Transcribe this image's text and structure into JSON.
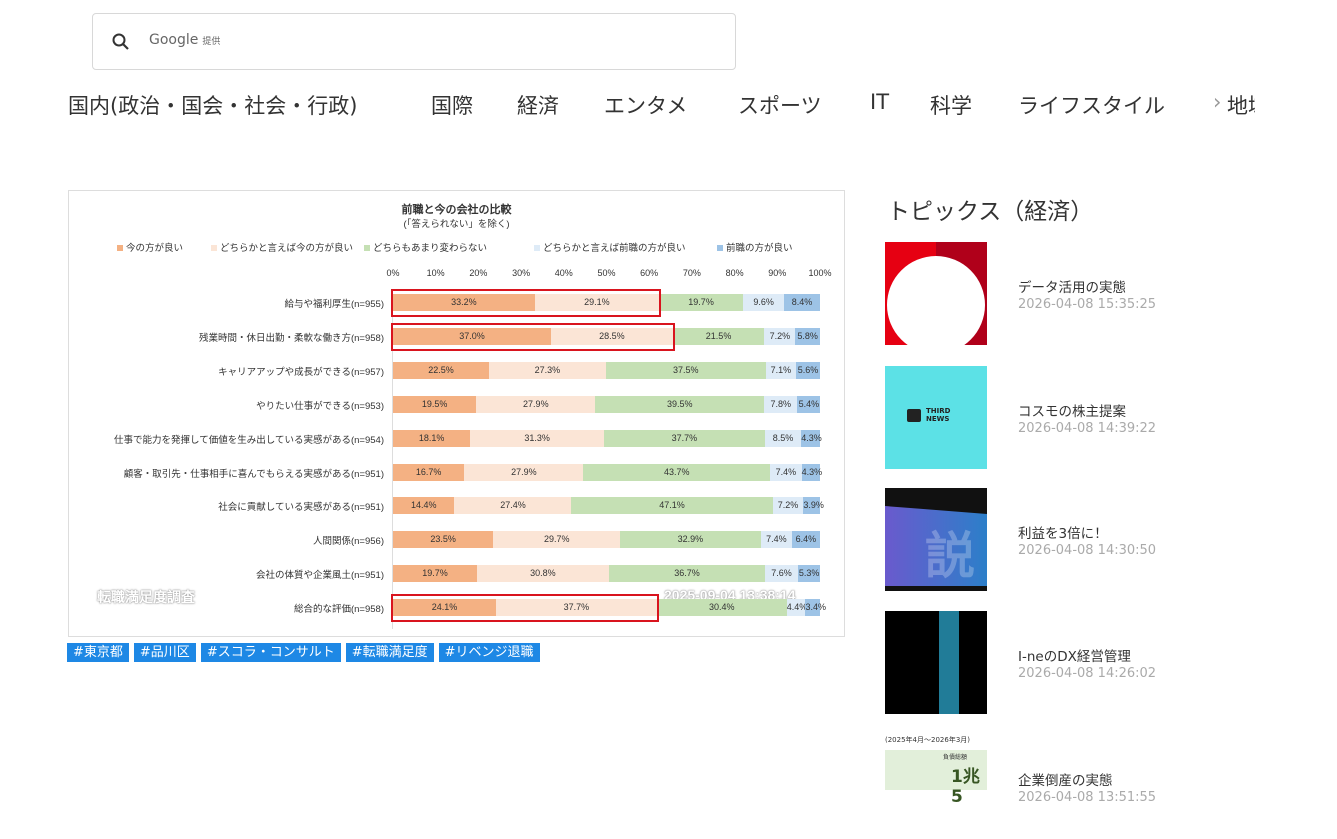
{
  "search": {
    "placeholder": "Google",
    "provider": "提供"
  },
  "nav": {
    "items": [
      "国内(政治・国会・社会・行政)",
      "国際",
      "経済",
      "エンタメ",
      "スポーツ",
      "IT",
      "科学",
      "ライフスタイル",
      "地域"
    ]
  },
  "chart_data": {
    "type": "bar",
    "stacked": "100%",
    "orientation": "horizontal",
    "title": "前職と今の会社の比較",
    "subtitle": "(「答えられない」を除く)",
    "legend_placement": "top",
    "xlim": [
      0,
      100
    ],
    "xticks": [
      "0%",
      "10%",
      "20%",
      "30%",
      "40%",
      "50%",
      "60%",
      "70%",
      "80%",
      "90%",
      "100%"
    ],
    "categories": [
      "給与や福利厚生(n=955)",
      "残業時間・休日出勤・柔軟な働き方(n=958)",
      "キャリアアップや成長ができる(n=957)",
      "やりたい仕事ができる(n=953)",
      "仕事で能力を発揮して価値を生み出している実感がある(n=954)",
      "顧客・取引先・仕事相手に喜んでもらえる実感がある(n=951)",
      "社会に貢献している実感がある(n=951)",
      "人間関係(n=956)",
      "会社の体質や企業風土(n=951)",
      "総合的な評価(n=958)"
    ],
    "series": [
      {
        "name": "今の方が良い",
        "color": "#f4b183",
        "values": [
          33.2,
          37.0,
          22.5,
          19.5,
          18.1,
          16.7,
          14.4,
          23.5,
          19.7,
          24.1
        ]
      },
      {
        "name": "どちらかと言えば今の方が良い",
        "color": "#fbe5d6",
        "values": [
          29.1,
          28.5,
          27.3,
          27.9,
          31.3,
          27.9,
          27.4,
          29.7,
          30.8,
          37.7
        ]
      },
      {
        "name": "どちらもあまり変わらない",
        "color": "#c5e0b4",
        "values": [
          19.7,
          21.5,
          37.5,
          39.5,
          37.7,
          43.7,
          47.1,
          32.9,
          36.7,
          30.4
        ]
      },
      {
        "name": "どちらかと言えば前職の方が良い",
        "color": "#deebf7",
        "values": [
          9.6,
          7.2,
          7.1,
          7.8,
          8.5,
          7.4,
          7.2,
          7.4,
          7.6,
          4.4
        ]
      },
      {
        "name": "前職の方が良い",
        "color": "#9dc3e6",
        "values": [
          8.4,
          5.8,
          5.6,
          5.4,
          4.3,
          4.3,
          3.9,
          6.4,
          5.3,
          3.4
        ]
      }
    ],
    "highlighted_rows": [
      0,
      1,
      9
    ],
    "watermark_left": "転職満足度調査",
    "watermark_right": "2025-09-04 13:38:14"
  },
  "tags": [
    "#東京都",
    "#品川区",
    "#スコラ・コンサルト",
    "#転職満足度",
    "#リベンジ退職"
  ],
  "topics": {
    "heading": "トピックス（経済）",
    "items": [
      {
        "title": "データ活用の実態",
        "date": "2026-04-08 15:35:25"
      },
      {
        "title": "コスモの株主提案",
        "date": "2026-04-08 14:39:22",
        "thumb_text": "THIRD NEWS"
      },
      {
        "title": "利益を3倍に！",
        "date": "2026-04-08 14:30:50"
      },
      {
        "title": "I-neのDX経営管理",
        "date": "2026-04-08 14:26:02"
      },
      {
        "title": "企業倒産の実態",
        "date": "2026-04-08 13:51:55",
        "thumb_text": "(2025年4月～2026年3月)",
        "thumb_label": "負債総額",
        "thumb_value": "1兆5"
      }
    ]
  }
}
